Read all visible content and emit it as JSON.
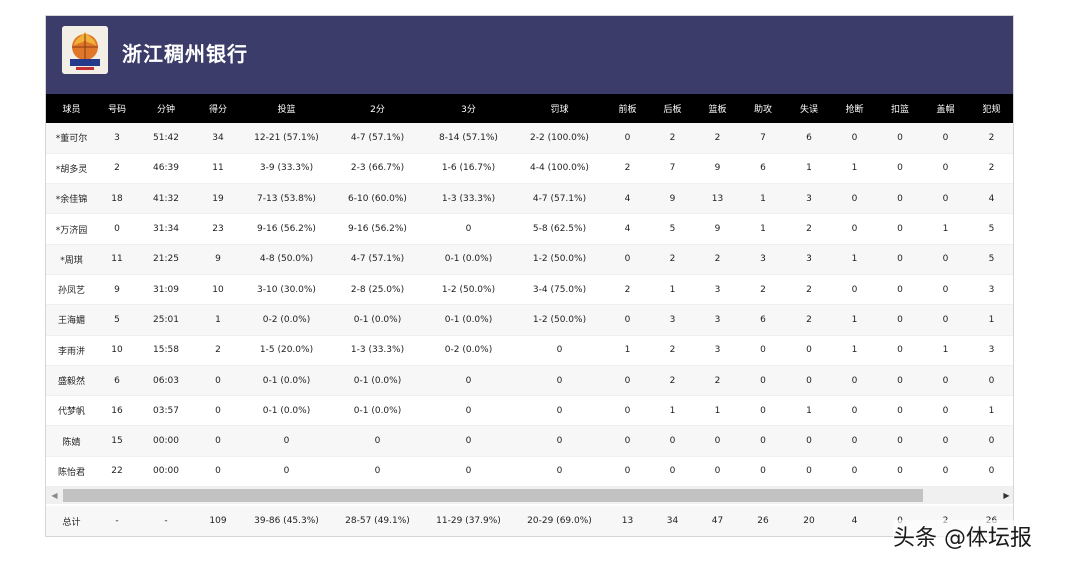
{
  "team": {
    "name": "浙江稠州银行",
    "logo_icon": "team-logo-icon"
  },
  "columns": [
    "球员",
    "号码",
    "分钟",
    "得分",
    "投篮",
    "2分",
    "3分",
    "罚球",
    "前板",
    "后板",
    "篮板",
    "助攻",
    "失误",
    "抢断",
    "扣篮",
    "盖帽",
    "犯规"
  ],
  "rows": [
    [
      "*董可尔",
      "3",
      "51:42",
      "34",
      "12-21 (57.1%)",
      "4-7 (57.1%)",
      "8-14 (57.1%)",
      "2-2 (100.0%)",
      "0",
      "2",
      "2",
      "7",
      "6",
      "0",
      "0",
      "0",
      "2"
    ],
    [
      "*胡多灵",
      "2",
      "46:39",
      "11",
      "3-9 (33.3%)",
      "2-3 (66.7%)",
      "1-6 (16.7%)",
      "4-4 (100.0%)",
      "2",
      "7",
      "9",
      "6",
      "1",
      "1",
      "0",
      "0",
      "2"
    ],
    [
      "*余佳锦",
      "18",
      "41:32",
      "19",
      "7-13 (53.8%)",
      "6-10 (60.0%)",
      "1-3 (33.3%)",
      "4-7 (57.1%)",
      "4",
      "9",
      "13",
      "1",
      "3",
      "0",
      "0",
      "0",
      "4"
    ],
    [
      "*万济园",
      "0",
      "31:34",
      "23",
      "9-16 (56.2%)",
      "9-16 (56.2%)",
      "0",
      "5-8 (62.5%)",
      "4",
      "5",
      "9",
      "1",
      "2",
      "0",
      "0",
      "1",
      "5"
    ],
    [
      "*周琪",
      "11",
      "21:25",
      "9",
      "4-8 (50.0%)",
      "4-7 (57.1%)",
      "0-1 (0.0%)",
      "1-2 (50.0%)",
      "0",
      "2",
      "2",
      "3",
      "3",
      "1",
      "0",
      "0",
      "5"
    ],
    [
      "孙凤艺",
      "9",
      "31:09",
      "10",
      "3-10 (30.0%)",
      "2-8 (25.0%)",
      "1-2 (50.0%)",
      "3-4 (75.0%)",
      "2",
      "1",
      "3",
      "2",
      "2",
      "0",
      "0",
      "0",
      "3"
    ],
    [
      "王海媚",
      "5",
      "25:01",
      "1",
      "0-2 (0.0%)",
      "0-1 (0.0%)",
      "0-1 (0.0%)",
      "1-2 (50.0%)",
      "0",
      "3",
      "3",
      "6",
      "2",
      "1",
      "0",
      "0",
      "1"
    ],
    [
      "李雨洴",
      "10",
      "15:58",
      "2",
      "1-5 (20.0%)",
      "1-3 (33.3%)",
      "0-2 (0.0%)",
      "0",
      "1",
      "2",
      "3",
      "0",
      "0",
      "1",
      "0",
      "1",
      "3"
    ],
    [
      "盛毅然",
      "6",
      "06:03",
      "0",
      "0-1 (0.0%)",
      "0-1 (0.0%)",
      "0",
      "0",
      "0",
      "2",
      "2",
      "0",
      "0",
      "0",
      "0",
      "0",
      "0"
    ],
    [
      "代梦帆",
      "16",
      "03:57",
      "0",
      "0-1 (0.0%)",
      "0-1 (0.0%)",
      "0",
      "0",
      "0",
      "1",
      "1",
      "0",
      "1",
      "0",
      "0",
      "0",
      "1"
    ],
    [
      "陈婧",
      "15",
      "00:00",
      "0",
      "0",
      "0",
      "0",
      "0",
      "0",
      "0",
      "0",
      "0",
      "0",
      "0",
      "0",
      "0",
      "0"
    ],
    [
      "陈怡君",
      "22",
      "00:00",
      "0",
      "0",
      "0",
      "0",
      "0",
      "0",
      "0",
      "0",
      "0",
      "0",
      "0",
      "0",
      "0",
      "0"
    ]
  ],
  "totals": [
    "总计",
    "-",
    "-",
    "109",
    "39-86 (45.3%)",
    "28-57 (49.1%)",
    "11-29 (37.9%)",
    "20-29 (69.0%)",
    "13",
    "34",
    "47",
    "26",
    "20",
    "4",
    "0",
    "2",
    "26"
  ],
  "scrollbar": {
    "left_arrow": "◀",
    "right_arrow": "▶",
    "thumb_fraction": 0.92
  },
  "watermark": "头条 @体坛报"
}
